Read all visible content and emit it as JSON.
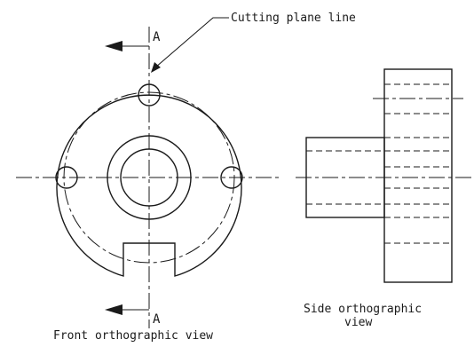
{
  "labels": {
    "cutting_plane": "Cutting plane line",
    "section_top": "A",
    "section_bottom": "A",
    "front_view": "Front orthographic view",
    "side_view_line1": "Side orthographic",
    "side_view_line2": "view"
  }
}
